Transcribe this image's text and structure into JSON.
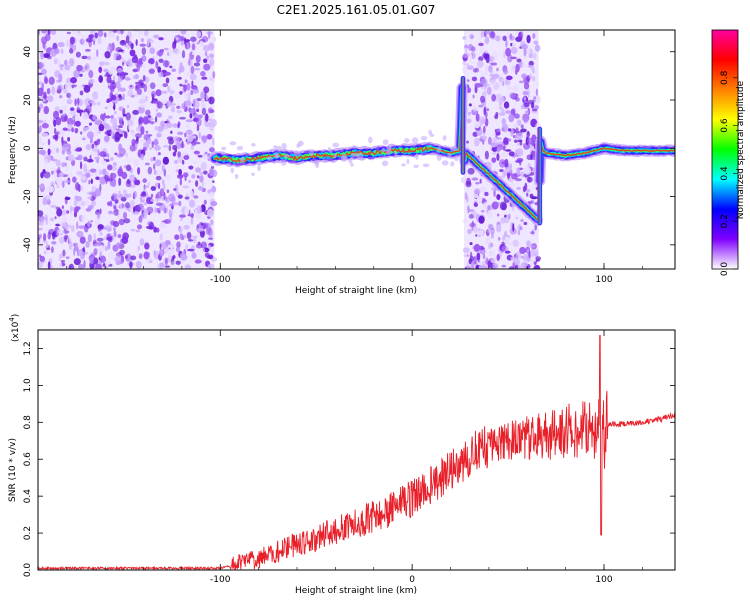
{
  "figure": {
    "title": "C2E1.2025.161.05.01.G07"
  },
  "chart_data": [
    {
      "type": "heatmap",
      "xlabel": "Height of straight line (km)",
      "ylabel": "Frequency (Hz)",
      "xlim": [
        -195,
        137
      ],
      "ylim": [
        -50,
        49
      ],
      "xticks": [
        -100,
        0,
        100
      ],
      "xtick_labels": [
        "-100",
        "0",
        "100"
      ],
      "yticks": [
        -40,
        -20,
        0,
        20,
        40
      ],
      "ytick_labels": [
        "-40",
        "-20",
        "0",
        "20",
        "40"
      ],
      "colorbar": {
        "label": "Normalized spectral amplitude",
        "range": [
          0,
          1
        ],
        "ticks": [
          0.0,
          0.2,
          0.4,
          0.6,
          0.8
        ],
        "tick_labels": [
          "0.0",
          "0.2",
          "0.4",
          "0.6",
          "0.8"
        ],
        "colors": [
          "#ffffff",
          "#8000ff",
          "#0000ff",
          "#00ffff",
          "#00ff00",
          "#ffff00",
          "#ff8000",
          "#ff0000",
          "#ff00a0"
        ]
      },
      "noise_regions_km": [
        [
          -195,
          -103
        ],
        [
          27,
          66
        ]
      ],
      "signal_trace": {
        "x": [
          -103,
          -90,
          -80,
          -70,
          -60,
          -50,
          -40,
          -30,
          -20,
          -10,
          0,
          10,
          20,
          25,
          26,
          27,
          28,
          66,
          67,
          68,
          70,
          80,
          90,
          100,
          110,
          120,
          130,
          137
        ],
        "y": [
          -4,
          -5,
          -4,
          -3,
          -4,
          -3,
          -3,
          -2,
          -2,
          -1,
          -1,
          0,
          -2,
          -1,
          25,
          -8,
          -2,
          -30,
          3,
          -1,
          -2,
          -3,
          -2,
          0,
          -1,
          -1,
          -1,
          -1
        ]
      }
    },
    {
      "type": "line",
      "xlabel": "Height of straight line (km)",
      "ylabel": "SNR (10 * v/v)",
      "multiplier_label": "(x10",
      "multiplier_exp": "4",
      "xlim": [
        -195,
        137
      ],
      "ylim": [
        0,
        1.3
      ],
      "xticks": [
        -100,
        0,
        100
      ],
      "xtick_labels": [
        "-100",
        "0",
        "100"
      ],
      "yticks": [
        0,
        0.2,
        0.4,
        0.6,
        0.8,
        1.0,
        1.2
      ],
      "ytick_labels": [
        "0.0",
        "0.2",
        "0.4",
        "0.6",
        "0.8",
        "1.0",
        "1.2"
      ],
      "series": [
        {
          "color": "#e8202a",
          "x": [
            -195,
            -150,
            -100,
            -95,
            -90,
            -80,
            -70,
            -60,
            -50,
            -40,
            -30,
            -20,
            -10,
            0,
            10,
            20,
            30,
            40,
            50,
            60,
            70,
            80,
            90,
            95,
            98,
            100,
            105,
            110,
            120,
            130,
            137
          ],
          "y": [
            0.01,
            0.01,
            0.01,
            0.02,
            0.04,
            0.06,
            0.1,
            0.14,
            0.17,
            0.21,
            0.25,
            0.29,
            0.33,
            0.39,
            0.46,
            0.54,
            0.62,
            0.67,
            0.7,
            0.72,
            0.73,
            0.75,
            0.76,
            0.77,
            0.78,
            0.79,
            0.79,
            0.79,
            0.8,
            0.82,
            0.84
          ]
        }
      ]
    }
  ]
}
